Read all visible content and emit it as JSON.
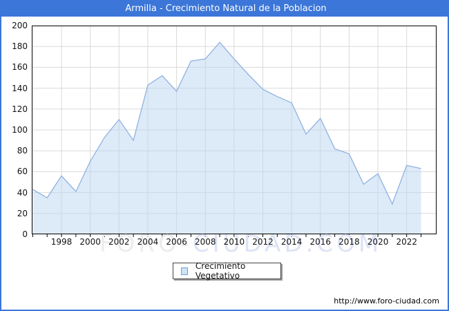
{
  "window": {
    "title": "Armilla - Crecimiento Natural de la Poblacion",
    "title_bar_color": "#3b76d8",
    "frame_border_color": "#3b76d8"
  },
  "chart_data": {
    "type": "area",
    "title": "Armilla - Crecimiento Natural de la Poblacion",
    "series_name": "Crecimiento Vegetativo",
    "x": [
      1996,
      1997,
      1998,
      1999,
      2000,
      2001,
      2002,
      2003,
      2004,
      2005,
      2006,
      2007,
      2008,
      2009,
      2010,
      2011,
      2012,
      2013,
      2014,
      2015,
      2016,
      2017,
      2018,
      2019,
      2020,
      2021,
      2022,
      2023
    ],
    "values": [
      43,
      35,
      56,
      41,
      70,
      93,
      110,
      90,
      143,
      152,
      137,
      166,
      168,
      184,
      168,
      153,
      139,
      132,
      126,
      96,
      111,
      82,
      77,
      48,
      58,
      29,
      66,
      63
    ],
    "ylim": [
      0,
      200
    ],
    "y_ticks": [
      0,
      20,
      40,
      60,
      80,
      100,
      120,
      140,
      160,
      180,
      200
    ],
    "x_tick_labels": [
      1998,
      2000,
      2002,
      2004,
      2006,
      2008,
      2010,
      2012,
      2014,
      2016,
      2018,
      2020,
      2022
    ],
    "grid": true,
    "legend_position": "bottom-center",
    "line_color": "#8fb2e0",
    "fill_color": "#bcd6f2",
    "grid_color": "#d9d9d9",
    "axis_border_color": "#000000"
  },
  "legend": {
    "label": "Crecimiento Vegetativo",
    "swatch_fill": "#cfe3f8",
    "swatch_border": "#6f9fd8"
  },
  "watermark": {
    "part1": "FORO-",
    "part2": "CIUDAD.COM",
    "part1_color": "#ececec",
    "part2_color": "#dde3f6"
  },
  "footer": {
    "url": "http://www.foro-ciudad.com"
  }
}
